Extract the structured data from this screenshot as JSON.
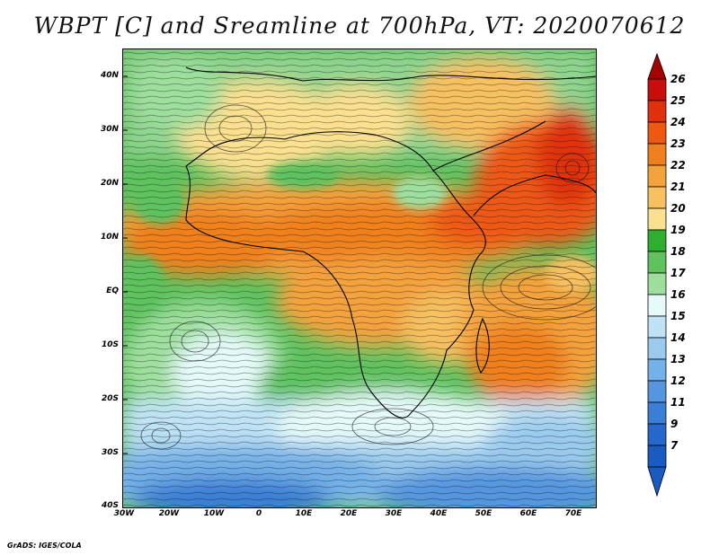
{
  "title": "WBPT [C] and Sreamline at 700hPa, VT: 2020070612",
  "credit": "GrADS: IGES/COLA",
  "map": {
    "lat_labels": [
      "40N",
      "30N",
      "20N",
      "10N",
      "EQ",
      "10S",
      "20S",
      "30S",
      "40S"
    ],
    "lon_labels": [
      "30W",
      "20W",
      "10W",
      "0",
      "10E",
      "20E",
      "30E",
      "40E",
      "50E",
      "60E",
      "70E"
    ],
    "lat_range": [
      -40,
      45
    ],
    "lon_range": [
      -30,
      75
    ]
  },
  "colorbar": {
    "labels": [
      "26",
      "25",
      "24",
      "23",
      "22",
      "21",
      "20",
      "19",
      "18",
      "17",
      "16",
      "15",
      "14",
      "13",
      "12",
      "11",
      "9",
      "7"
    ],
    "colors": [
      "#a50000",
      "#c80d0d",
      "#e0300e",
      "#ee5812",
      "#f0801f",
      "#f4a23c",
      "#f7c060",
      "#fbe090",
      "#2fae2f",
      "#5ec25e",
      "#9edf9e",
      "#e6fafa",
      "#bfe3f5",
      "#9acbee",
      "#74b1e8",
      "#5596df",
      "#3a7ed6",
      "#2468cc",
      "#1a5bc2"
    ]
  }
}
